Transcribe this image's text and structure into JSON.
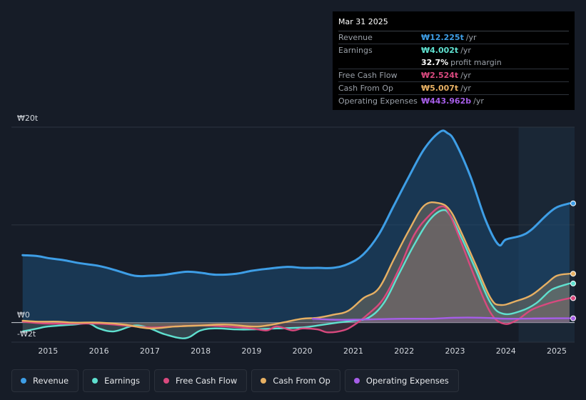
{
  "tooltip": {
    "date": "Mar 31 2025",
    "rows": [
      {
        "label": "Revenue",
        "value": "₩12.225t",
        "unit": "/yr",
        "color": "#3e9ee6"
      },
      {
        "label": "Earnings",
        "value": "₩4.002t",
        "unit": "/yr",
        "color": "#5fe0cf"
      },
      {
        "label": "",
        "value": "32.7%",
        "unit": "profit margin",
        "color": "#ffffff"
      },
      {
        "label": "Free Cash Flow",
        "value": "₩2.524t",
        "unit": "/yr",
        "color": "#d9497e"
      },
      {
        "label": "Cash From Op",
        "value": "₩5.007t",
        "unit": "/yr",
        "color": "#e7b063"
      },
      {
        "label": "Operating Expenses",
        "value": "₩443.962b",
        "unit": "/yr",
        "color": "#a65ee8"
      }
    ]
  },
  "legend": [
    {
      "label": "Revenue",
      "color": "#3e9ee6"
    },
    {
      "label": "Earnings",
      "color": "#5fe0cf"
    },
    {
      "label": "Free Cash Flow",
      "color": "#d9497e"
    },
    {
      "label": "Cash From Op",
      "color": "#e7b063"
    },
    {
      "label": "Operating Expenses",
      "color": "#a65ee8"
    }
  ],
  "chart_data": {
    "type": "area",
    "title": "",
    "xlabel": "",
    "ylabel": "",
    "ylim": [
      -2,
      20
    ],
    "y_tick_labels": [
      "₩20t",
      "₩0",
      "-₩2t"
    ],
    "x_tick_labels": [
      "2015",
      "2016",
      "2017",
      "2018",
      "2019",
      "2020",
      "2021",
      "2022",
      "2023",
      "2024",
      "2025"
    ],
    "grid": true,
    "legend_position": "bottom",
    "series": [
      {
        "name": "Revenue",
        "color": "#3e9ee6",
        "points": [
          [
            2014.5,
            6.9
          ],
          [
            2014.8,
            6.8
          ],
          [
            2015.0,
            6.6
          ],
          [
            2015.3,
            6.4
          ],
          [
            2015.6,
            6.1
          ],
          [
            2016.0,
            5.8
          ],
          [
            2016.3,
            5.4
          ],
          [
            2016.7,
            4.8
          ],
          [
            2017.0,
            4.8
          ],
          [
            2017.3,
            4.9
          ],
          [
            2017.7,
            5.2
          ],
          [
            2018.0,
            5.1
          ],
          [
            2018.3,
            4.9
          ],
          [
            2018.7,
            5.0
          ],
          [
            2019.0,
            5.3
          ],
          [
            2019.3,
            5.5
          ],
          [
            2019.7,
            5.7
          ],
          [
            2020.0,
            5.6
          ],
          [
            2020.3,
            5.6
          ],
          [
            2020.6,
            5.6
          ],
          [
            2020.9,
            6.0
          ],
          [
            2021.2,
            7.0
          ],
          [
            2021.5,
            9.0
          ],
          [
            2021.8,
            12.0
          ],
          [
            2022.1,
            15.0
          ],
          [
            2022.4,
            17.8
          ],
          [
            2022.7,
            19.5
          ],
          [
            2022.85,
            19.4
          ],
          [
            2023.0,
            18.5
          ],
          [
            2023.3,
            15.0
          ],
          [
            2023.6,
            10.5
          ],
          [
            2023.85,
            8.0
          ],
          [
            2024.0,
            8.5
          ],
          [
            2024.3,
            8.9
          ],
          [
            2024.5,
            9.5
          ],
          [
            2024.8,
            11.0
          ],
          [
            2025.0,
            11.8
          ],
          [
            2025.25,
            12.2
          ]
        ]
      },
      {
        "name": "Earnings",
        "color": "#5fe0cf",
        "points": [
          [
            2014.5,
            -0.9
          ],
          [
            2014.8,
            -0.6
          ],
          [
            2015.0,
            -0.4
          ],
          [
            2015.5,
            -0.2
          ],
          [
            2015.8,
            -0.1
          ],
          [
            2016.0,
            -0.6
          ],
          [
            2016.3,
            -0.9
          ],
          [
            2016.7,
            -0.3
          ],
          [
            2017.0,
            -0.6
          ],
          [
            2017.3,
            -1.2
          ],
          [
            2017.7,
            -1.6
          ],
          [
            2018.0,
            -0.8
          ],
          [
            2018.3,
            -0.6
          ],
          [
            2018.7,
            -0.7
          ],
          [
            2019.0,
            -0.7
          ],
          [
            2019.5,
            -0.6
          ],
          [
            2020.0,
            -0.5
          ],
          [
            2020.3,
            -0.3
          ],
          [
            2020.7,
            0.0
          ],
          [
            2021.0,
            0.2
          ],
          [
            2021.3,
            0.5
          ],
          [
            2021.6,
            2.0
          ],
          [
            2021.9,
            5.0
          ],
          [
            2022.2,
            8.0
          ],
          [
            2022.5,
            10.5
          ],
          [
            2022.75,
            11.5
          ],
          [
            2022.9,
            11.0
          ],
          [
            2023.1,
            9.0
          ],
          [
            2023.4,
            5.5
          ],
          [
            2023.7,
            2.0
          ],
          [
            2023.95,
            0.9
          ],
          [
            2024.3,
            1.2
          ],
          [
            2024.6,
            2.0
          ],
          [
            2024.85,
            3.2
          ],
          [
            2025.0,
            3.6
          ],
          [
            2025.25,
            4.0
          ]
        ]
      },
      {
        "name": "Free Cash Flow",
        "color": "#d9497e",
        "points": [
          [
            2014.5,
            0.1
          ],
          [
            2015.0,
            -0.1
          ],
          [
            2016.0,
            -0.1
          ],
          [
            2016.5,
            -0.3
          ],
          [
            2017.0,
            -0.5
          ],
          [
            2017.5,
            -0.4
          ],
          [
            2018.0,
            -0.3
          ],
          [
            2018.5,
            -0.4
          ],
          [
            2019.0,
            -0.6
          ],
          [
            2019.3,
            -0.8
          ],
          [
            2019.5,
            -0.4
          ],
          [
            2019.8,
            -0.8
          ],
          [
            2020.0,
            -0.6
          ],
          [
            2020.3,
            -0.7
          ],
          [
            2020.5,
            -1.0
          ],
          [
            2020.8,
            -0.8
          ],
          [
            2021.0,
            -0.3
          ],
          [
            2021.3,
            0.9
          ],
          [
            2021.6,
            2.5
          ],
          [
            2021.9,
            5.5
          ],
          [
            2022.2,
            9.0
          ],
          [
            2022.5,
            11.0
          ],
          [
            2022.75,
            11.9
          ],
          [
            2022.9,
            11.0
          ],
          [
            2023.1,
            8.5
          ],
          [
            2023.4,
            4.5
          ],
          [
            2023.7,
            1.0
          ],
          [
            2023.95,
            -0.1
          ],
          [
            2024.2,
            0.2
          ],
          [
            2024.5,
            1.3
          ],
          [
            2024.8,
            1.9
          ],
          [
            2025.0,
            2.2
          ],
          [
            2025.25,
            2.5
          ]
        ]
      },
      {
        "name": "Cash From Op",
        "color": "#e7b063",
        "points": [
          [
            2014.5,
            0.2
          ],
          [
            2014.8,
            0.1
          ],
          [
            2015.2,
            0.1
          ],
          [
            2015.5,
            0.0
          ],
          [
            2016.0,
            0.0
          ],
          [
            2016.5,
            -0.2
          ],
          [
            2017.0,
            -0.6
          ],
          [
            2017.5,
            -0.4
          ],
          [
            2018.0,
            -0.3
          ],
          [
            2018.5,
            -0.2
          ],
          [
            2019.0,
            -0.4
          ],
          [
            2019.3,
            -0.3
          ],
          [
            2019.7,
            0.1
          ],
          [
            2020.0,
            0.4
          ],
          [
            2020.3,
            0.5
          ],
          [
            2020.6,
            0.8
          ],
          [
            2020.9,
            1.2
          ],
          [
            2021.2,
            2.5
          ],
          [
            2021.5,
            3.5
          ],
          [
            2021.8,
            6.5
          ],
          [
            2022.1,
            9.5
          ],
          [
            2022.4,
            12.0
          ],
          [
            2022.7,
            12.2
          ],
          [
            2022.9,
            11.5
          ],
          [
            2023.1,
            9.5
          ],
          [
            2023.4,
            6.0
          ],
          [
            2023.7,
            2.5
          ],
          [
            2023.9,
            1.8
          ],
          [
            2024.2,
            2.2
          ],
          [
            2024.5,
            2.8
          ],
          [
            2024.8,
            4.0
          ],
          [
            2025.0,
            4.8
          ],
          [
            2025.25,
            5.0
          ]
        ]
      },
      {
        "name": "Operating Expenses",
        "color": "#a65ee8",
        "points": [
          [
            2020.2,
            0.4
          ],
          [
            2020.6,
            0.3
          ],
          [
            2021.0,
            0.3
          ],
          [
            2021.5,
            0.35
          ],
          [
            2022.0,
            0.4
          ],
          [
            2022.5,
            0.4
          ],
          [
            2023.0,
            0.5
          ],
          [
            2023.5,
            0.5
          ],
          [
            2024.0,
            0.4
          ],
          [
            2024.5,
            0.42
          ],
          [
            2025.0,
            0.44
          ],
          [
            2025.25,
            0.44
          ]
        ]
      }
    ]
  }
}
